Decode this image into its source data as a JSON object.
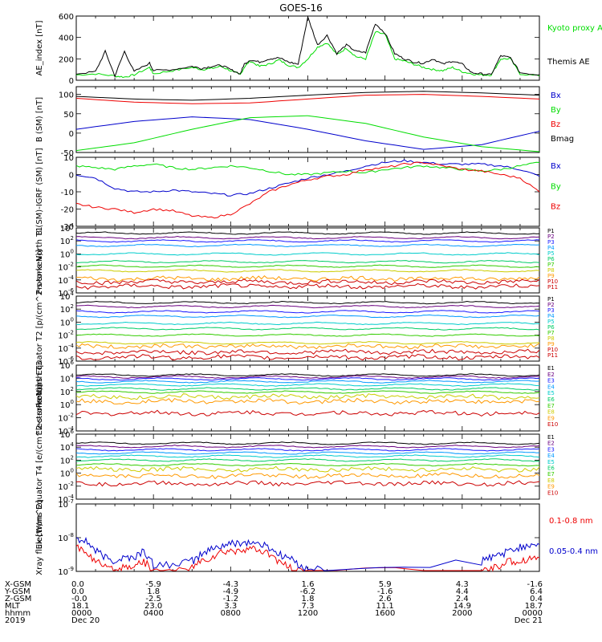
{
  "title": "GOES-16",
  "colors": {
    "black": "#000000",
    "red": "#ee0000",
    "green": "#00dd00",
    "blue": "#0000cc",
    "P": [
      "#000000",
      "#6a0080",
      "#1a1aff",
      "#0099ff",
      "#00cccc",
      "#00cc66",
      "#33cc00",
      "#cccc00",
      "#ff9900",
      "#cc0000",
      "#cc0000"
    ],
    "E": [
      "#000000",
      "#6a0080",
      "#1a1aff",
      "#0099ff",
      "#00cccc",
      "#00cc66",
      "#33cc00",
      "#cccc00",
      "#ff9900",
      "#cc0000"
    ]
  },
  "chart_data": [
    {
      "type": "line",
      "ylabel": "AE_index [nT]",
      "ylim": [
        0,
        600
      ],
      "y_ticks": [
        "0",
        "200",
        "400",
        "600"
      ],
      "series": [
        {
          "name": "Kyoto proxy AE",
          "color": "green",
          "x": [
            0,
            1,
            2,
            2.5,
            3,
            3.8,
            4,
            5,
            6,
            6.5,
            7,
            7.5,
            8,
            8.5,
            8.7,
            9,
            9.5,
            10,
            10.5,
            11,
            11.5,
            12,
            12.5,
            13,
            13.5,
            14,
            14.5,
            15,
            15.5,
            16,
            16.5,
            17,
            17.5,
            18,
            18.5,
            19,
            19.5,
            20,
            20.5,
            21,
            21.5,
            22,
            22.5,
            23,
            24
          ],
          "y": [
            50,
            60,
            40,
            30,
            50,
            120,
            60,
            90,
            120,
            100,
            110,
            130,
            90,
            50,
            120,
            180,
            130,
            150,
            190,
            140,
            120,
            200,
            310,
            350,
            240,
            300,
            220,
            200,
            450,
            430,
            200,
            180,
            150,
            120,
            100,
            90,
            120,
            80,
            60,
            50,
            50,
            200,
            200,
            60,
            40
          ]
        },
        {
          "name": "Themis AE",
          "color": "black",
          "x": [
            0,
            1,
            1.5,
            2,
            2.5,
            3,
            3.8,
            4,
            5,
            6,
            6.5,
            7,
            7.5,
            8,
            8.5,
            8.7,
            9,
            9.5,
            10,
            10.5,
            11,
            11.5,
            12,
            12.5,
            13,
            13.5,
            14,
            14.5,
            15,
            15.5,
            16,
            16.5,
            17,
            17.5,
            18,
            18.5,
            19,
            19.5,
            20,
            20.5,
            21,
            21.5,
            22,
            22.5,
            23,
            24
          ],
          "y": [
            60,
            80,
            270,
            40,
            270,
            80,
            160,
            90,
            100,
            130,
            110,
            130,
            140,
            100,
            60,
            150,
            190,
            170,
            200,
            210,
            170,
            150,
            590,
            330,
            420,
            250,
            330,
            270,
            260,
            530,
            440,
            250,
            200,
            170,
            160,
            200,
            150,
            180,
            150,
            70,
            60,
            50,
            230,
            210,
            70,
            50
          ]
        }
      ]
    },
    {
      "type": "line",
      "ylabel": "B (SM) [nT]",
      "ylim": [
        -50,
        120
      ],
      "y_ticks": [
        "-50",
        "0",
        "50",
        "100"
      ],
      "series": [
        {
          "name": "Bx",
          "color": "blue",
          "x": [
            0,
            3,
            6,
            9,
            12,
            15,
            18,
            21,
            24
          ],
          "y": [
            10,
            30,
            42,
            35,
            10,
            -20,
            -42,
            -30,
            5
          ]
        },
        {
          "name": "By",
          "color": "green",
          "x": [
            0,
            3,
            6,
            9,
            12,
            15,
            18,
            21,
            24
          ],
          "y": [
            -45,
            -25,
            10,
            40,
            45,
            25,
            -10,
            -35,
            -48
          ]
        },
        {
          "name": "Bz",
          "color": "red",
          "x": [
            0,
            3,
            6,
            9,
            12,
            15,
            18,
            21,
            24
          ],
          "y": [
            90,
            80,
            76,
            78,
            88,
            98,
            100,
            95,
            88
          ]
        },
        {
          "name": "Bmag",
          "color": "black",
          "x": [
            0,
            3,
            6,
            9,
            12,
            15,
            18,
            21,
            24
          ],
          "y": [
            95,
            88,
            85,
            90,
            98,
            105,
            108,
            104,
            98
          ]
        }
      ]
    },
    {
      "type": "line",
      "ylabel": "B (SM)-IGRF (SM) [nT]",
      "ylim": [
        -30,
        10
      ],
      "y_ticks": [
        "-30",
        "-20",
        "-10",
        "0",
        "10"
      ],
      "series": [
        {
          "name": "Bx",
          "color": "blue",
          "x": [
            0,
            1,
            2,
            3,
            4,
            5,
            6,
            7,
            8,
            9,
            10,
            11,
            12,
            13,
            14,
            15,
            16,
            17,
            18,
            19,
            20,
            21,
            22,
            23,
            24
          ],
          "y": [
            0,
            -2,
            -8,
            -10,
            -10,
            -9,
            -10,
            -11,
            -12,
            -11,
            -8,
            -5,
            -2,
            0,
            2,
            5,
            7,
            8,
            7,
            6,
            6,
            6,
            5,
            3,
            -1
          ]
        },
        {
          "name": "By",
          "color": "green",
          "x": [
            0,
            1,
            2,
            3,
            4,
            5,
            6,
            7,
            8,
            9,
            10,
            11,
            12,
            13,
            14,
            15,
            16,
            17,
            18,
            19,
            20,
            21,
            22,
            23,
            24
          ],
          "y": [
            5,
            4,
            3,
            5,
            6,
            4,
            3,
            4,
            5,
            4,
            2,
            0,
            0,
            1,
            2,
            1,
            3,
            4,
            5,
            4,
            3,
            2,
            3,
            5,
            7
          ]
        },
        {
          "name": "Bz",
          "color": "red",
          "x": [
            0,
            1,
            2,
            3,
            4,
            5,
            6,
            7,
            8,
            9,
            10,
            11,
            12,
            13,
            14,
            15,
            16,
            17,
            18,
            19,
            20,
            21,
            22,
            23,
            24
          ],
          "y": [
            -17,
            -19,
            -20,
            -22,
            -20,
            -21,
            -24,
            -25,
            -23,
            -17,
            -10,
            -6,
            -3,
            -1,
            0,
            3,
            4,
            6,
            7,
            5,
            3,
            2,
            0,
            -2,
            -10
          ]
        }
      ]
    },
    {
      "type": "line",
      "ylabel": "Protons North T1",
      "y_log": true,
      "ylim_exp": [
        -6,
        4
      ],
      "y_ticks": [
        "10^4",
        "10^2",
        "10^0",
        "10^-2",
        "10^-4",
        "10^-6"
      ],
      "series": [
        {
          "name": "P1",
          "color_index": 0,
          "log_y": 3.2
        },
        {
          "name": "P2",
          "color_index": 1,
          "log_y": 2.5
        },
        {
          "name": "P3",
          "color_index": 2,
          "log_y": 2.0
        },
        {
          "name": "P4",
          "color_index": 3,
          "log_y": 1.3
        },
        {
          "name": "P5",
          "color_index": 4,
          "log_y": 0.0
        },
        {
          "name": "P6",
          "color_index": 5,
          "log_y": -1.2
        },
        {
          "name": "P7",
          "color_index": 6,
          "log_y": -1.9
        },
        {
          "name": "P8",
          "color_index": 7,
          "log_y": -2.6
        },
        {
          "name": "P9",
          "color_index": 8,
          "log_y": -3.8
        },
        {
          "name": "P10",
          "color_index": 9,
          "log_y": -4.3
        },
        {
          "name": "P11",
          "color_index": 10,
          "log_y": -5.0
        }
      ]
    },
    {
      "type": "line",
      "ylabel": "Protons Equator T2 [p/(cm^2-s-sr-keV)]",
      "y_log": true,
      "ylim_exp": [
        -6,
        4
      ],
      "y_ticks": [
        "10^4",
        "10^2",
        "10^0",
        "10^-2",
        "10^-4",
        "10^-6"
      ],
      "series": [
        {
          "name": "P1",
          "color_index": 0,
          "log_y": 3.0
        },
        {
          "name": "P2",
          "color_index": 1,
          "log_y": 2.4
        },
        {
          "name": "P3",
          "color_index": 2,
          "log_y": 1.6
        },
        {
          "name": "P4",
          "color_index": 3,
          "log_y": 0.9
        },
        {
          "name": "P5",
          "color_index": 4,
          "log_y": -0.2
        },
        {
          "name": "P6",
          "color_index": 5,
          "log_y": -1.0
        },
        {
          "name": "P7",
          "color_index": 6,
          "log_y": -2.0
        },
        {
          "name": "P8",
          "color_index": 7,
          "log_y": -3.2
        },
        {
          "name": "P9",
          "color_index": 8,
          "log_y": -3.7
        },
        {
          "name": "P10",
          "color_index": 9,
          "log_y": -4.6
        },
        {
          "name": "P11",
          "color_index": 10,
          "log_y": -5.4
        }
      ]
    },
    {
      "type": "line",
      "ylabel": "Electrons North T3",
      "y_log": true,
      "ylim_exp": [
        -4,
        6
      ],
      "y_ticks": [
        "10^6",
        "10^4",
        "10^2",
        "10^0",
        "10^-2",
        "10^-4"
      ],
      "series": [
        {
          "name": "E1",
          "color_index": 0,
          "log_y": 4.5
        },
        {
          "name": "E2",
          "color_index": 1,
          "log_y": 4.2
        },
        {
          "name": "E3",
          "color_index": 2,
          "log_y": 3.9
        },
        {
          "name": "E4",
          "color_index": 3,
          "log_y": 3.5
        },
        {
          "name": "E5",
          "color_index": 4,
          "log_y": 3.0
        },
        {
          "name": "E6",
          "color_index": 5,
          "log_y": 2.4
        },
        {
          "name": "E7",
          "color_index": 6,
          "log_y": 1.9
        },
        {
          "name": "E8",
          "color_index": 7,
          "log_y": 1.2
        },
        {
          "name": "E9",
          "color_index": 8,
          "log_y": 0.5
        },
        {
          "name": "E10",
          "color_index": 9,
          "log_y": -1.3
        }
      ]
    },
    {
      "type": "line",
      "ylabel": "Electrons Equator T4 [e/(cm^2-s-sr-keV)]",
      "y_log": true,
      "ylim_exp": [
        -4,
        6
      ],
      "y_ticks": [
        "10^6",
        "10^4",
        "10^2",
        "10^0",
        "10^-2",
        "10^-4"
      ],
      "series": [
        {
          "name": "E1",
          "color_index": 0,
          "log_y": 4.6
        },
        {
          "name": "E2",
          "color_index": 1,
          "log_y": 4.1
        },
        {
          "name": "E3",
          "color_index": 2,
          "log_y": 3.6
        },
        {
          "name": "E4",
          "color_index": 3,
          "log_y": 3.1
        },
        {
          "name": "E5",
          "color_index": 4,
          "log_y": 2.6
        },
        {
          "name": "E6",
          "color_index": 5,
          "log_y": 2.0
        },
        {
          "name": "E7",
          "color_index": 6,
          "log_y": 1.3
        },
        {
          "name": "E8",
          "color_index": 7,
          "log_y": 0.6
        },
        {
          "name": "E9",
          "color_index": 8,
          "log_y": -0.4
        },
        {
          "name": "E10",
          "color_index": 9,
          "log_y": -1.6
        }
      ]
    },
    {
      "type": "line",
      "ylabel": "Xray flux [W/m^2]",
      "y_log": true,
      "ylim_exp": [
        -9,
        -7
      ],
      "y_ticks": [
        "10^-7",
        "10^-8",
        "10^-9"
      ],
      "series": [
        {
          "name": "0.1-0.8 nm",
          "color": "red",
          "x": [
            0,
            0.5,
            1,
            1.5,
            2,
            2.5,
            3,
            3.5,
            4,
            5,
            6,
            6.5,
            7,
            7.5,
            8,
            8.5,
            9,
            9.5,
            10,
            10.5,
            11,
            11.5,
            12,
            21,
            21.5,
            22,
            22.5,
            23,
            23.5,
            24
          ],
          "y": [
            -8.3,
            -8.4,
            -8.7,
            -8.9,
            -9.0,
            -8.9,
            -8.8,
            -8.7,
            -9.0,
            -9.0,
            -8.9,
            -8.7,
            -8.6,
            -8.45,
            -8.4,
            -8.35,
            -8.35,
            -8.4,
            -8.5,
            -8.7,
            -8.9,
            -9.0,
            -9.0,
            -9.0,
            -8.9,
            -8.8,
            -8.7,
            -8.7,
            -8.6,
            -8.6
          ]
        },
        {
          "name": "0.05-0.4 nm",
          "color": "blue",
          "x": [
            0,
            0.5,
            1,
            1.5,
            2,
            2.5,
            3,
            3.5,
            4,
            5,
            6,
            6.5,
            7,
            7.5,
            8,
            8.5,
            9,
            9.5,
            10,
            10.5,
            11,
            11.5,
            12,
            13,
            21,
            21.5,
            22,
            22.5,
            23,
            23.5,
            24
          ],
          "y": [
            -8.0,
            -8.1,
            -8.4,
            -8.6,
            -8.7,
            -8.6,
            -8.6,
            -8.4,
            -8.8,
            -8.8,
            -8.7,
            -8.5,
            -8.35,
            -8.25,
            -8.2,
            -8.15,
            -8.15,
            -8.2,
            -8.3,
            -8.5,
            -8.6,
            -8.8,
            -8.9,
            -9.0,
            -8.7,
            -8.6,
            -8.5,
            -8.4,
            -8.3,
            -8.2,
            -8.2
          ]
        }
      ]
    }
  ],
  "axis_table": {
    "row_labels": [
      "X-GSM",
      "Y-GSM",
      "Z-GSM",
      "MLT",
      "hhmm",
      "2019"
    ],
    "columns": [
      [
        "0.0",
        "0.0",
        "-0.0",
        "18.1",
        "0000",
        "Dec 20"
      ],
      [
        "-5.9",
        "1.8",
        "-2.5",
        "23.0",
        "0400",
        ""
      ],
      [
        "-4.3",
        "-4.9",
        "-1.2",
        "3.3",
        "0800",
        ""
      ],
      [
        "1.6",
        "-6.2",
        "1.8",
        "7.3",
        "1200",
        ""
      ],
      [
        "5.9",
        "-1.6",
        "2.6",
        "11.1",
        "1600",
        ""
      ],
      [
        "4.3",
        "4.4",
        "2.4",
        "14.9",
        "2000",
        ""
      ],
      [
        "-1.6",
        "6.4",
        "0.4",
        "18.7",
        "0000",
        "Dec 21"
      ]
    ]
  }
}
